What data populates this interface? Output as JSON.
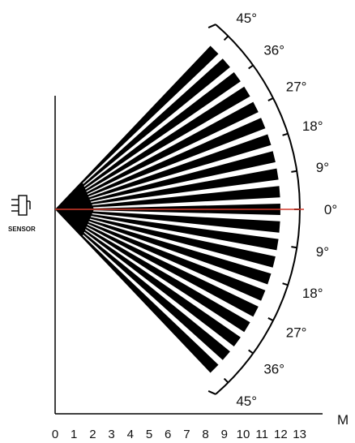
{
  "sensor": {
    "label": "SENSOR",
    "icon": "sensor-icon"
  },
  "x_axis": {
    "unit": "M",
    "ticks": [
      "0",
      "1",
      "2",
      "3",
      "4",
      "5",
      "6",
      "7",
      "8",
      "9",
      "10",
      "11",
      "12",
      "13"
    ]
  },
  "angle_scale": {
    "upper": [
      "45°",
      "36°",
      "27°",
      "18°",
      "9°"
    ],
    "center": "0°",
    "lower": [
      "9°",
      "18°",
      "27°",
      "36°",
      "45°"
    ]
  },
  "pattern": {
    "beam_count": 21,
    "angle_range_deg": [
      -45,
      45
    ],
    "range_m": 12,
    "beam_color": "#000000",
    "center_line_color": "#d23a2b"
  }
}
